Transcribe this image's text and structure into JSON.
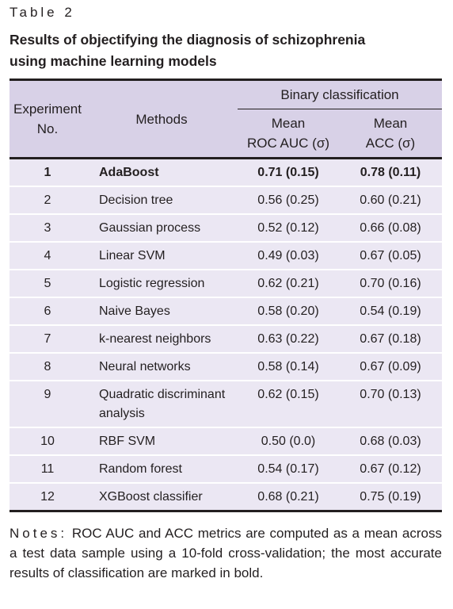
{
  "caption": {
    "label": "Table 2",
    "title": "Results of objectifying the diagnosis of schizophrenia using machine learning models"
  },
  "table": {
    "header": {
      "experiment": [
        "Experiment",
        "No."
      ],
      "methods": "Methods",
      "group": "Binary classification",
      "roc": [
        "Mean",
        "ROC AUC (σ)"
      ],
      "acc": [
        "Mean",
        "ACC (σ)"
      ]
    },
    "rows": [
      [
        "1",
        "AdaBoost",
        "0.71 (0.15)",
        "0.78 (0.11)"
      ],
      [
        "2",
        "Decision tree",
        "0.56 (0.25)",
        "0.60 (0.21)"
      ],
      [
        "3",
        "Gaussian process",
        "0.52 (0.12)",
        "0.66 (0.08)"
      ],
      [
        "4",
        "Linear SVM",
        "0.49 (0.03)",
        "0.67 (0.05)"
      ],
      [
        "5",
        "Logistic regression",
        "0.62 (0.21)",
        "0.70 (0.16)"
      ],
      [
        "6",
        "Naive Bayes",
        "0.58 (0.20)",
        "0.54 (0.19)"
      ],
      [
        "7",
        "k-nearest neighbors",
        "0.63 (0.22)",
        "0.67 (0.18)"
      ],
      [
        "8",
        "Neural networks",
        "0.58 (0.14)",
        "0.67 (0.09)"
      ],
      [
        "9",
        "Quadratic discriminant analysis",
        "0.62 (0.15)",
        "0.70 (0.13)"
      ],
      [
        "10",
        "RBF SVM",
        "0.50 (0.0)",
        "0.68 (0.03)"
      ],
      [
        "11",
        "Random forest",
        "0.54 (0.17)",
        "0.67 (0.12)"
      ],
      [
        "12",
        "XGBoost classifier",
        "0.68 (0.21)",
        "0.75 (0.19)"
      ]
    ]
  },
  "notes": {
    "label": "Notes:",
    "text": "ROC AUC and ACC metrics are computed as a mean across a test data sample using a 10-fold cross-validation; the most accurate results of classification are marked in bold."
  }
}
